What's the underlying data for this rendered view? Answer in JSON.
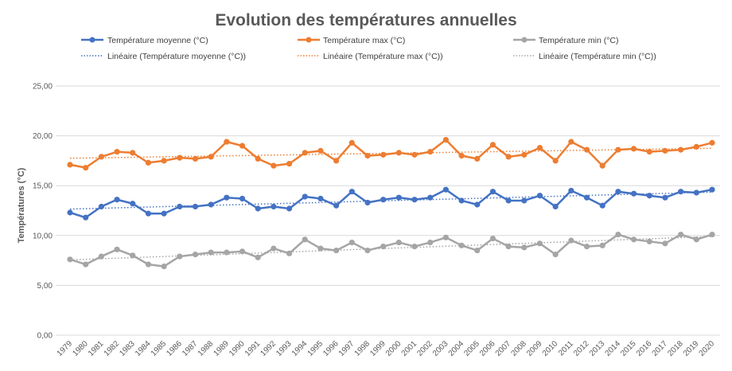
{
  "chart_data": {
    "type": "line",
    "title": "Evolution des températures annuelles",
    "xlabel": "",
    "ylabel": "Températures (°C)",
    "ylim": [
      0,
      25
    ],
    "yticks": [
      "0,00",
      "5,00",
      "10,00",
      "15,00",
      "20,00",
      "25,00"
    ],
    "grid": true,
    "legend_position": "top",
    "categories": [
      "1979",
      "1980",
      "1981",
      "1982",
      "1983",
      "1984",
      "1985",
      "1986",
      "1987",
      "1988",
      "1989",
      "1990",
      "1991",
      "1992",
      "1993",
      "1994",
      "1995",
      "1996",
      "1997",
      "1998",
      "1999",
      "2000",
      "2001",
      "2002",
      "2003",
      "2004",
      "2005",
      "2006",
      "2007",
      "2008",
      "2009",
      "2010",
      "2011",
      "2012",
      "2013",
      "2014",
      "2015",
      "2016",
      "2017",
      "2018",
      "2019",
      "2020"
    ],
    "series": [
      {
        "name": "Température moyenne (°C)",
        "color": "#4472C4",
        "values": [
          12.3,
          11.8,
          12.9,
          13.6,
          13.2,
          12.2,
          12.2,
          12.9,
          12.9,
          13.1,
          13.8,
          13.7,
          12.7,
          12.9,
          12.7,
          13.9,
          13.7,
          13.0,
          14.4,
          13.3,
          13.6,
          13.8,
          13.6,
          13.8,
          14.6,
          13.5,
          13.1,
          14.4,
          13.5,
          13.5,
          14.0,
          12.9,
          14.5,
          13.8,
          13.0,
          14.4,
          14.2,
          14.0,
          13.8,
          14.4,
          14.3,
          14.6
        ]
      },
      {
        "name": "Température max (°C)",
        "color": "#ED7D31",
        "values": [
          17.1,
          16.8,
          17.9,
          18.4,
          18.3,
          17.3,
          17.5,
          17.8,
          17.7,
          17.9,
          19.4,
          19.0,
          17.7,
          17.0,
          17.2,
          18.3,
          18.5,
          17.5,
          19.3,
          18.0,
          18.1,
          18.3,
          18.1,
          18.4,
          19.6,
          18.0,
          17.7,
          19.1,
          17.9,
          18.1,
          18.8,
          17.5,
          19.4,
          18.6,
          17.0,
          18.6,
          18.7,
          18.4,
          18.5,
          18.6,
          18.9,
          19.3
        ]
      },
      {
        "name": "Température min (°C)",
        "color": "#A5A5A5",
        "values": [
          7.6,
          7.1,
          7.9,
          8.6,
          8.0,
          7.1,
          6.9,
          7.9,
          8.1,
          8.3,
          8.3,
          8.4,
          7.8,
          8.7,
          8.2,
          9.6,
          8.7,
          8.5,
          9.3,
          8.5,
          8.9,
          9.3,
          8.9,
          9.3,
          9.8,
          9.0,
          8.5,
          9.7,
          8.9,
          8.8,
          9.2,
          8.1,
          9.5,
          8.9,
          9.0,
          10.1,
          9.6,
          9.4,
          9.2,
          10.1,
          9.6,
          10.1
        ]
      }
    ],
    "trendlines": [
      {
        "name": "Linéaire (Température moyenne (°C))",
        "color": "#4472C4",
        "start": 12.65,
        "end": 14.35
      },
      {
        "name": "Linéaire (Température max (°C))",
        "color": "#ED7D31",
        "start": 17.75,
        "end": 18.75
      },
      {
        "name": "Linéaire (Température min (°C))",
        "color": "#A5A5A5",
        "start": 7.55,
        "end": 9.9
      }
    ]
  }
}
